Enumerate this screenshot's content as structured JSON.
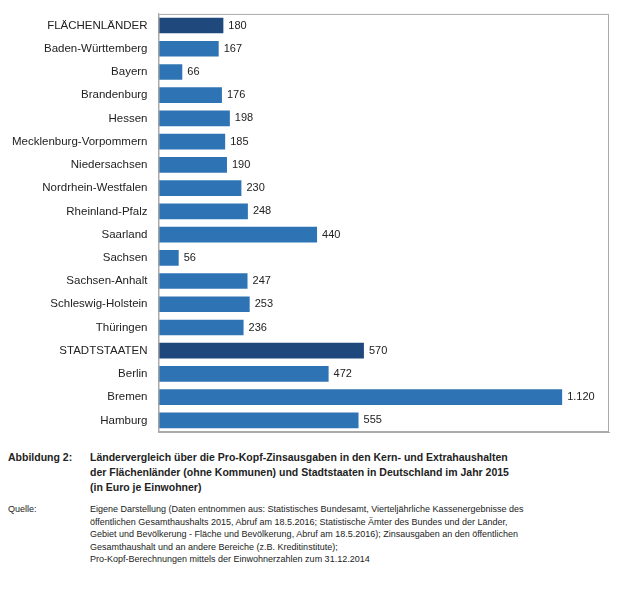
{
  "chart_data": {
    "type": "bar",
    "orientation": "horizontal",
    "categories": [
      "FLÄCHENLÄNDER",
      "Baden-Württemberg",
      "Bayern",
      "Brandenburg",
      "Hessen",
      "Mecklenburg-Vorpommern",
      "Niedersachsen",
      "Nordrhein-Westfalen",
      "Rheinland-Pfalz",
      "Saarland",
      "Sachsen",
      "Sachsen-Anhalt",
      "Schleswig-Holstein",
      "Thüringen",
      "STADTSTAATEN",
      "Berlin",
      "Bremen",
      "Hamburg"
    ],
    "values": [
      180,
      167,
      66,
      176,
      198,
      185,
      190,
      230,
      248,
      440,
      56,
      247,
      253,
      236,
      570,
      472,
      1120,
      555
    ],
    "value_labels": [
      "180",
      "167",
      "66",
      "176",
      "198",
      "185",
      "190",
      "230",
      "248",
      "440",
      "56",
      "247",
      "253",
      "236",
      "570",
      "472",
      "1.120",
      "555"
    ],
    "colors": [
      "#1f497d",
      "#2e74b5",
      "#2e74b5",
      "#2e74b5",
      "#2e74b5",
      "#2e74b5",
      "#2e74b5",
      "#2e74b5",
      "#2e74b5",
      "#2e74b5",
      "#2e74b5",
      "#2e74b5",
      "#2e74b5",
      "#2e74b5",
      "#1f497d",
      "#2e74b5",
      "#2e74b5",
      "#2e74b5"
    ],
    "xlim": [
      0,
      1250
    ],
    "data_labels": true,
    "tick_labels": "y",
    "grid": false,
    "annotations": [
      {
        "label": "Abbildung 2:",
        "text": [
          "Ländervergleich über die Pro-Kopf-Zinsausgaben in den Kern- und Extrahaushalten",
          "der Flächenländer (ohne Kommunen) und Stadtstaaten in Deutschland im Jahr 2015",
          "(in Euro je Einwohner)"
        ]
      },
      {
        "label": "Quelle:",
        "text": [
          "Eigene Darstellung (Daten entnommen aus: Statistisches Bundesamt, Vierteljährliche Kassenergebnisse des",
          "öffentlichen Gesamthaushalts 2015, Abruf am 18.5.2016; Statistische Ämter des Bundes und der Länder,",
          "Gebiet und Bevölkerung - Fläche und Bevölkerung, Abruf am 18.5.2016); Zinsausgaben an den öffentlichen",
          "Gesamthaushalt und an andere Bereiche (z.B. Kreditinstitute);",
          "Pro-Kopf-Berechnungen mittels der Einwohnerzahlen zum 31.12.2014"
        ]
      }
    ]
  }
}
